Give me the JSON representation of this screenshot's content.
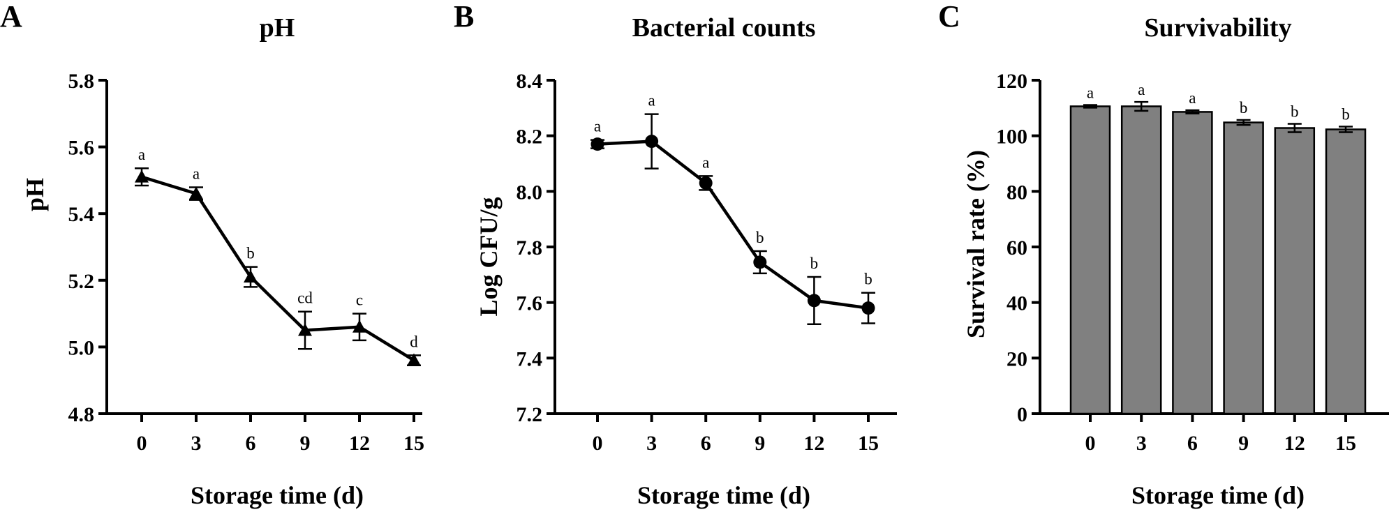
{
  "chart_data": [
    {
      "panel": "A",
      "type": "line",
      "title": "pH",
      "xlabel": "Storage time (d)",
      "ylabel": "pH",
      "x": [
        0,
        3,
        6,
        9,
        12,
        15
      ],
      "x_tick_labels": [
        "0",
        "3",
        "6",
        "9",
        "12",
        "15"
      ],
      "ylim": [
        4.8,
        5.8
      ],
      "y_ticks": [
        4.8,
        5.0,
        5.2,
        5.4,
        5.6,
        5.8
      ],
      "y_tick_labels": [
        "4.8",
        "5.0",
        "5.2",
        "5.4",
        "5.6",
        "5.8"
      ],
      "marker": "triangle",
      "series": [
        {
          "values": [
            5.51,
            5.46,
            5.21,
            5.05,
            5.06,
            4.96
          ],
          "error": [
            0.026,
            0.019,
            0.03,
            0.056,
            0.04,
            0.015
          ],
          "labels": [
            "a",
            "a",
            "b",
            "cd",
            "c",
            "d"
          ]
        }
      ]
    },
    {
      "panel": "B",
      "type": "line",
      "title": "Bacterial counts",
      "xlabel": "Storage time (d)",
      "ylabel": "Log CFU/g",
      "x": [
        0,
        3,
        6,
        9,
        12,
        15
      ],
      "x_tick_labels": [
        "0",
        "3",
        "6",
        "9",
        "12",
        "15"
      ],
      "ylim": [
        7.2,
        8.4
      ],
      "y_ticks": [
        7.2,
        7.4,
        7.6,
        7.8,
        8.0,
        8.2,
        8.4
      ],
      "y_tick_labels": [
        "7.2",
        "7.4",
        "7.6",
        "7.8",
        "8.0",
        "8.2",
        "8.4"
      ],
      "marker": "circle",
      "series": [
        {
          "values": [
            8.17,
            8.18,
            8.03,
            7.745,
            7.607,
            7.58
          ],
          "error": [
            0.015,
            0.098,
            0.025,
            0.04,
            0.085,
            0.055
          ],
          "labels": [
            "a",
            "a",
            "a",
            "b",
            "b",
            "b"
          ]
        }
      ]
    },
    {
      "panel": "C",
      "type": "bar",
      "title": "Survivability",
      "xlabel": "Storage time (d)",
      "ylabel": "Survival rate (%)",
      "categories": [
        "0",
        "3",
        "6",
        "9",
        "12",
        "15"
      ],
      "ylim": [
        0,
        120
      ],
      "y_ticks": [
        0,
        20,
        40,
        60,
        80,
        100,
        120
      ],
      "y_tick_labels": [
        "0",
        "20",
        "40",
        "60",
        "80",
        "100",
        "120"
      ],
      "bar_color": "#808080",
      "series": [
        {
          "values": [
            110.6,
            110.6,
            108.6,
            104.8,
            102.8,
            102.3
          ],
          "error": [
            0.5,
            1.6,
            0.6,
            0.9,
            1.5,
            1.0
          ],
          "labels": [
            "a",
            "a",
            "a",
            "b",
            "b",
            "b"
          ]
        }
      ]
    }
  ]
}
